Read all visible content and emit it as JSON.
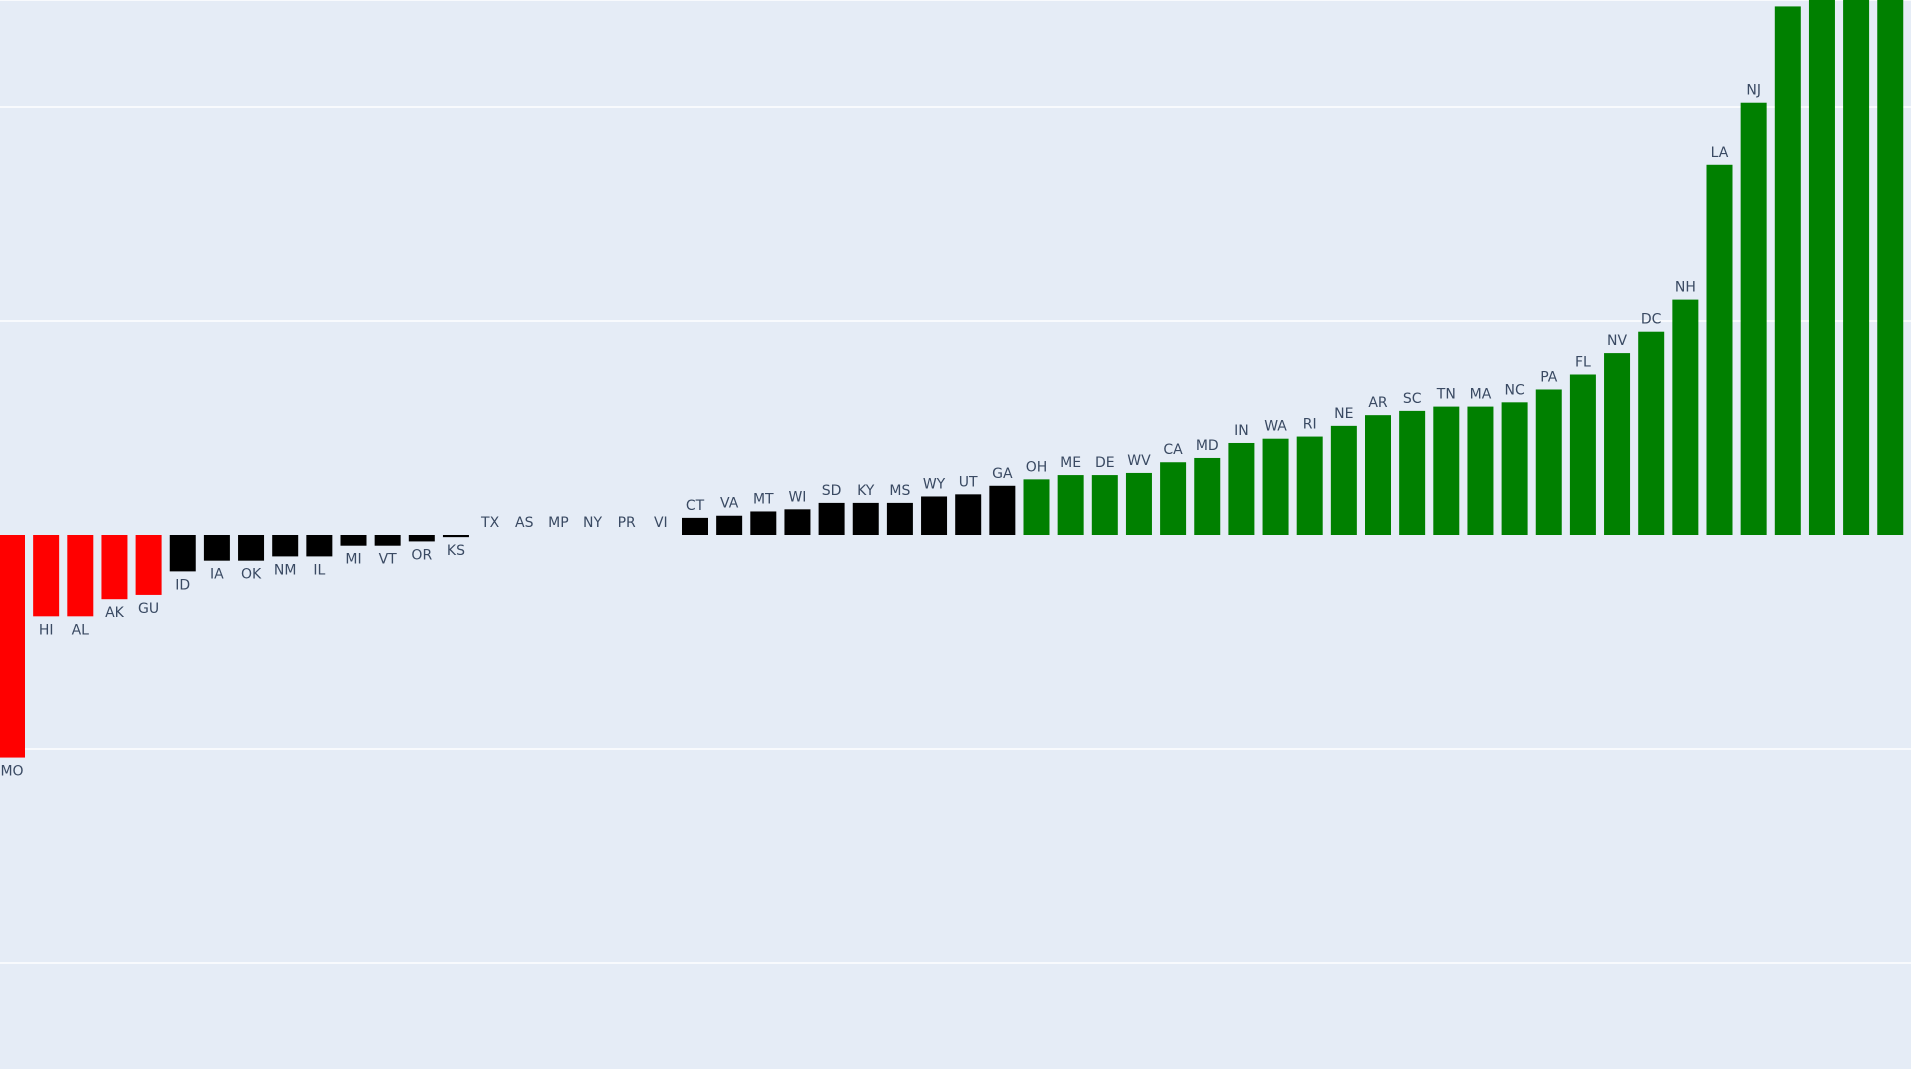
{
  "chart_data": {
    "type": "bar",
    "title": "",
    "xlabel": "",
    "ylabel": "",
    "ylim": [
      -2.5,
      2.5
    ],
    "grid": true,
    "legend": "none",
    "categories": [
      "MO",
      "HI",
      "AL",
      "AK",
      "GU",
      "ID",
      "IA",
      "OK",
      "NM",
      "IL",
      "MI",
      "VT",
      "OR",
      "KS",
      "TX",
      "AS",
      "MP",
      "NY",
      "PR",
      "VI",
      "CT",
      "VA",
      "MT",
      "WI",
      "SD",
      "KY",
      "MS",
      "WY",
      "UT",
      "GA",
      "OH",
      "ME",
      "DE",
      "WV",
      "CA",
      "MD",
      "IN",
      "WA",
      "RI",
      "NE",
      "AR",
      "SC",
      "TN",
      "MA",
      "NC",
      "PA",
      "FL",
      "NV",
      "DC",
      "NH",
      "LA",
      "NJ",
      "",
      "",
      "",
      ""
    ],
    "values": [
      -1.04,
      -0.38,
      -0.38,
      -0.3,
      -0.28,
      -0.17,
      -0.12,
      -0.12,
      -0.1,
      -0.1,
      -0.05,
      -0.05,
      -0.03,
      -0.01,
      0.0,
      0.0,
      0.0,
      0.0,
      0.0,
      0.0,
      0.08,
      0.09,
      0.11,
      0.12,
      0.15,
      0.15,
      0.15,
      0.18,
      0.19,
      0.23,
      0.26,
      0.28,
      0.28,
      0.29,
      0.34,
      0.36,
      0.43,
      0.45,
      0.46,
      0.51,
      0.56,
      0.58,
      0.6,
      0.6,
      0.62,
      0.68,
      0.75,
      0.85,
      0.95,
      1.1,
      1.73,
      2.02,
      2.47,
      2.5,
      2.5,
      2.5
    ],
    "colors": {
      "negative_strong": "#ff0000",
      "neutral": "#000000",
      "positive": "#008000",
      "background": "#e5ecf6",
      "gridline": "#ffffff",
      "label": "#3a4a63"
    }
  }
}
